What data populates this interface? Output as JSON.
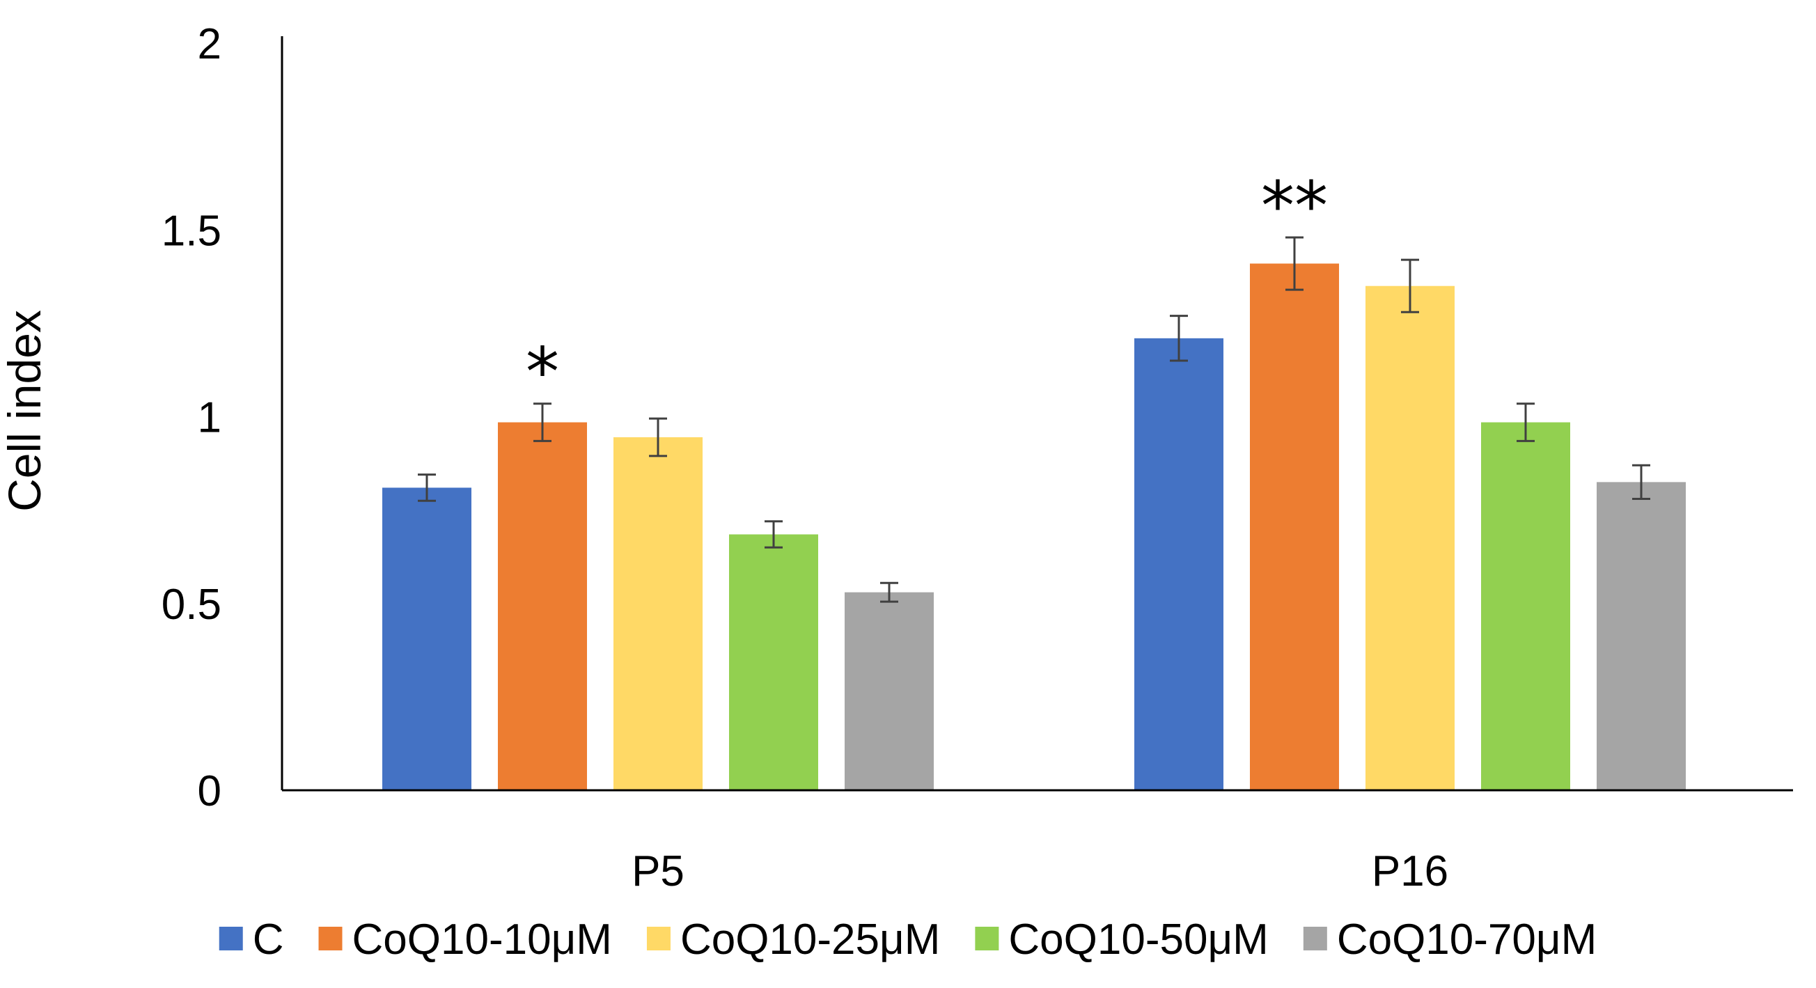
{
  "chart_data": {
    "type": "bar",
    "title": "",
    "xlabel": "",
    "ylabel": "Cell index",
    "ylim": [
      0,
      2
    ],
    "yticks": [
      0,
      0.5,
      1,
      1.5,
      2
    ],
    "ytick_labels": [
      "0",
      "0.5",
      "1",
      "1.5",
      "2"
    ],
    "grid": false,
    "legend_position": "bottom",
    "categories": [
      "P5",
      "P16"
    ],
    "series": [
      {
        "name": "C",
        "color": "#4472C4",
        "values": [
          0.81,
          1.21
        ],
        "errors": [
          0.035,
          0.06
        ]
      },
      {
        "name": "CoQ10-10μM",
        "color": "#ED7D31",
        "values": [
          0.985,
          1.41
        ],
        "errors": [
          0.05,
          0.07
        ]
      },
      {
        "name": "CoQ10-25μM",
        "color": "#FFD966",
        "values": [
          0.945,
          1.35
        ],
        "errors": [
          0.05,
          0.07
        ]
      },
      {
        "name": "CoQ10-50μM",
        "color": "#92D050",
        "values": [
          0.685,
          0.985
        ],
        "errors": [
          0.035,
          0.05
        ]
      },
      {
        "name": "CoQ10-70μM",
        "color": "#A5A5A5",
        "values": [
          0.53,
          0.825
        ],
        "errors": [
          0.025,
          0.045
        ]
      }
    ],
    "annotations": [
      {
        "text": "*",
        "category": "P5",
        "series": "CoQ10-10μM"
      },
      {
        "text": "**",
        "category": "P16",
        "series": "CoQ10-10μM"
      }
    ]
  }
}
